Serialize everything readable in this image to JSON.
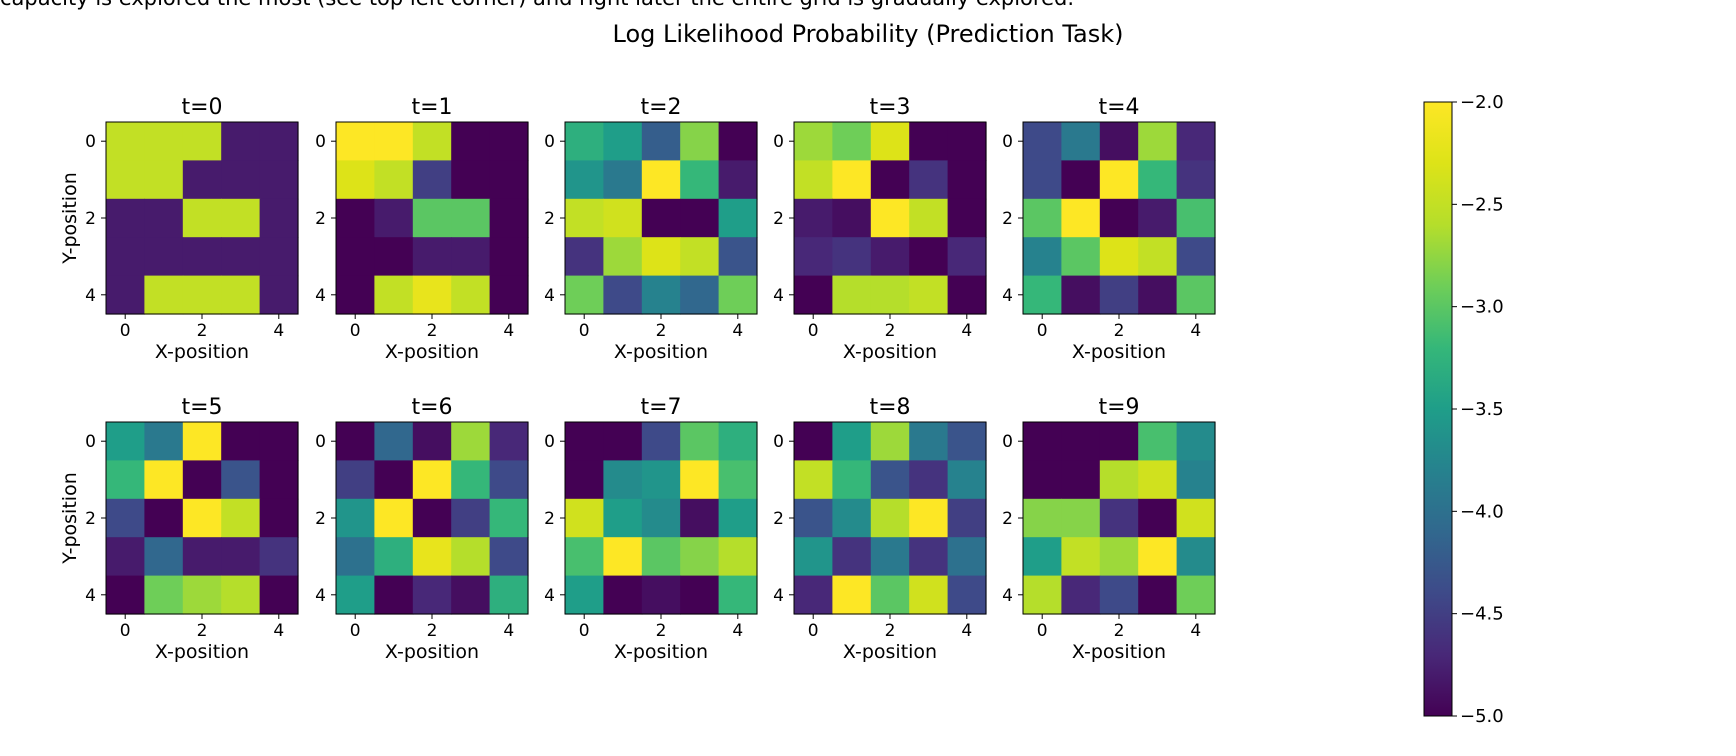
{
  "cutoff_text": "capacity is explored the most (see top left corner) and right later the entire grid is gradually explored.",
  "chart_data": {
    "type": "heatmap",
    "title": "Log Likelihood Probability (Prediction Task)",
    "xlabel": "X-position",
    "ylabel": "Y-position",
    "xticks": [
      "0",
      "2",
      "4"
    ],
    "yticks": [
      "0",
      "2",
      "4"
    ],
    "colormap": "viridis",
    "colorbar": {
      "range": [
        -5.0,
        -2.0
      ],
      "ticks": [
        "−2.0",
        "−2.5",
        "−3.0",
        "−3.5",
        "−4.0",
        "−4.5",
        "−5.0"
      ],
      "tick_values": [
        -2.0,
        -2.5,
        -3.0,
        -3.5,
        -4.0,
        -4.5,
        -5.0
      ]
    },
    "panels": [
      {
        "title": "t=0",
        "grid": [
          [
            -2.5,
            -2.5,
            -2.5,
            -4.8,
            -4.8
          ],
          [
            -2.5,
            -2.5,
            -4.8,
            -4.8,
            -4.8
          ],
          [
            -4.8,
            -4.8,
            -2.5,
            -2.5,
            -4.8
          ],
          [
            -4.8,
            -4.8,
            -4.8,
            -4.8,
            -4.8
          ],
          [
            -4.8,
            -2.5,
            -2.5,
            -2.5,
            -4.8
          ]
        ]
      },
      {
        "title": "t=1",
        "grid": [
          [
            -2.0,
            -2.0,
            -2.5,
            -5.0,
            -5.0
          ],
          [
            -2.3,
            -2.5,
            -4.5,
            -5.0,
            -5.0
          ],
          [
            -5.0,
            -4.8,
            -3.0,
            -3.0,
            -5.0
          ],
          [
            -5.0,
            -5.0,
            -4.8,
            -4.8,
            -5.0
          ],
          [
            -5.0,
            -2.5,
            -2.2,
            -2.5,
            -5.0
          ]
        ]
      },
      {
        "title": "t=2",
        "grid": [
          [
            -3.3,
            -3.5,
            -4.2,
            -2.8,
            -5.0
          ],
          [
            -3.6,
            -3.9,
            -2.0,
            -3.2,
            -4.8
          ],
          [
            -2.5,
            -2.4,
            -5.0,
            -5.0,
            -3.5
          ],
          [
            -4.6,
            -2.7,
            -2.3,
            -2.5,
            -4.3
          ],
          [
            -2.9,
            -4.4,
            -3.8,
            -4.1,
            -2.9
          ]
        ]
      },
      {
        "title": "t=3",
        "grid": [
          [
            -2.7,
            -2.9,
            -2.3,
            -5.0,
            -5.0
          ],
          [
            -2.5,
            -2.0,
            -5.0,
            -4.6,
            -5.0
          ],
          [
            -4.8,
            -4.9,
            -2.0,
            -2.5,
            -5.0
          ],
          [
            -4.7,
            -4.6,
            -4.8,
            -5.0,
            -4.7
          ],
          [
            -5.0,
            -2.6,
            -2.6,
            -2.5,
            -5.0
          ]
        ]
      },
      {
        "title": "t=4",
        "grid": [
          [
            -4.4,
            -3.9,
            -4.9,
            -2.7,
            -4.7
          ],
          [
            -4.4,
            -5.0,
            -2.0,
            -3.2,
            -4.6
          ],
          [
            -3.0,
            -2.0,
            -5.0,
            -4.8,
            -3.1
          ],
          [
            -3.8,
            -3.0,
            -2.3,
            -2.5,
            -4.4
          ],
          [
            -3.2,
            -4.9,
            -4.5,
            -4.9,
            -3.0
          ]
        ]
      },
      {
        "title": "t=5",
        "grid": [
          [
            -3.5,
            -3.9,
            -2.0,
            -5.0,
            -5.0
          ],
          [
            -3.2,
            -2.0,
            -5.0,
            -4.3,
            -5.0
          ],
          [
            -4.4,
            -5.0,
            -2.0,
            -2.5,
            -5.0
          ],
          [
            -4.8,
            -4.1,
            -4.8,
            -4.8,
            -4.6
          ],
          [
            -5.0,
            -2.9,
            -2.7,
            -2.6,
            -5.0
          ]
        ]
      },
      {
        "title": "t=6",
        "grid": [
          [
            -5.0,
            -4.1,
            -4.9,
            -2.7,
            -4.7
          ],
          [
            -4.5,
            -5.0,
            -2.0,
            -3.2,
            -4.4
          ],
          [
            -3.6,
            -2.0,
            -5.0,
            -4.5,
            -3.2
          ],
          [
            -4.0,
            -3.3,
            -2.2,
            -2.6,
            -4.4
          ],
          [
            -3.5,
            -5.0,
            -4.7,
            -4.9,
            -3.3
          ]
        ]
      },
      {
        "title": "t=7",
        "grid": [
          [
            -5.0,
            -5.0,
            -4.4,
            -3.0,
            -3.3
          ],
          [
            -5.0,
            -3.7,
            -3.6,
            -2.0,
            -3.1
          ],
          [
            -2.4,
            -3.5,
            -3.7,
            -4.9,
            -3.5
          ],
          [
            -3.1,
            -2.0,
            -3.0,
            -2.8,
            -2.6
          ],
          [
            -3.5,
            -5.0,
            -4.9,
            -5.0,
            -3.2
          ]
        ]
      },
      {
        "title": "t=8",
        "grid": [
          [
            -5.0,
            -3.5,
            -2.7,
            -3.9,
            -4.3
          ],
          [
            -2.5,
            -3.2,
            -4.3,
            -4.6,
            -3.8
          ],
          [
            -4.3,
            -3.7,
            -2.6,
            -2.0,
            -4.5
          ],
          [
            -3.6,
            -4.6,
            -3.9,
            -4.6,
            -4.0
          ],
          [
            -4.7,
            -2.0,
            -3.0,
            -2.4,
            -4.4
          ]
        ]
      },
      {
        "title": "t=9",
        "grid": [
          [
            -5.0,
            -5.0,
            -5.0,
            -3.1,
            -3.7
          ],
          [
            -5.0,
            -5.0,
            -2.6,
            -2.4,
            -3.8
          ],
          [
            -2.8,
            -2.8,
            -4.6,
            -5.0,
            -2.4
          ],
          [
            -3.5,
            -2.5,
            -2.7,
            -2.0,
            -3.7
          ],
          [
            -2.6,
            -4.7,
            -4.4,
            -5.0,
            -2.9
          ]
        ]
      }
    ]
  }
}
